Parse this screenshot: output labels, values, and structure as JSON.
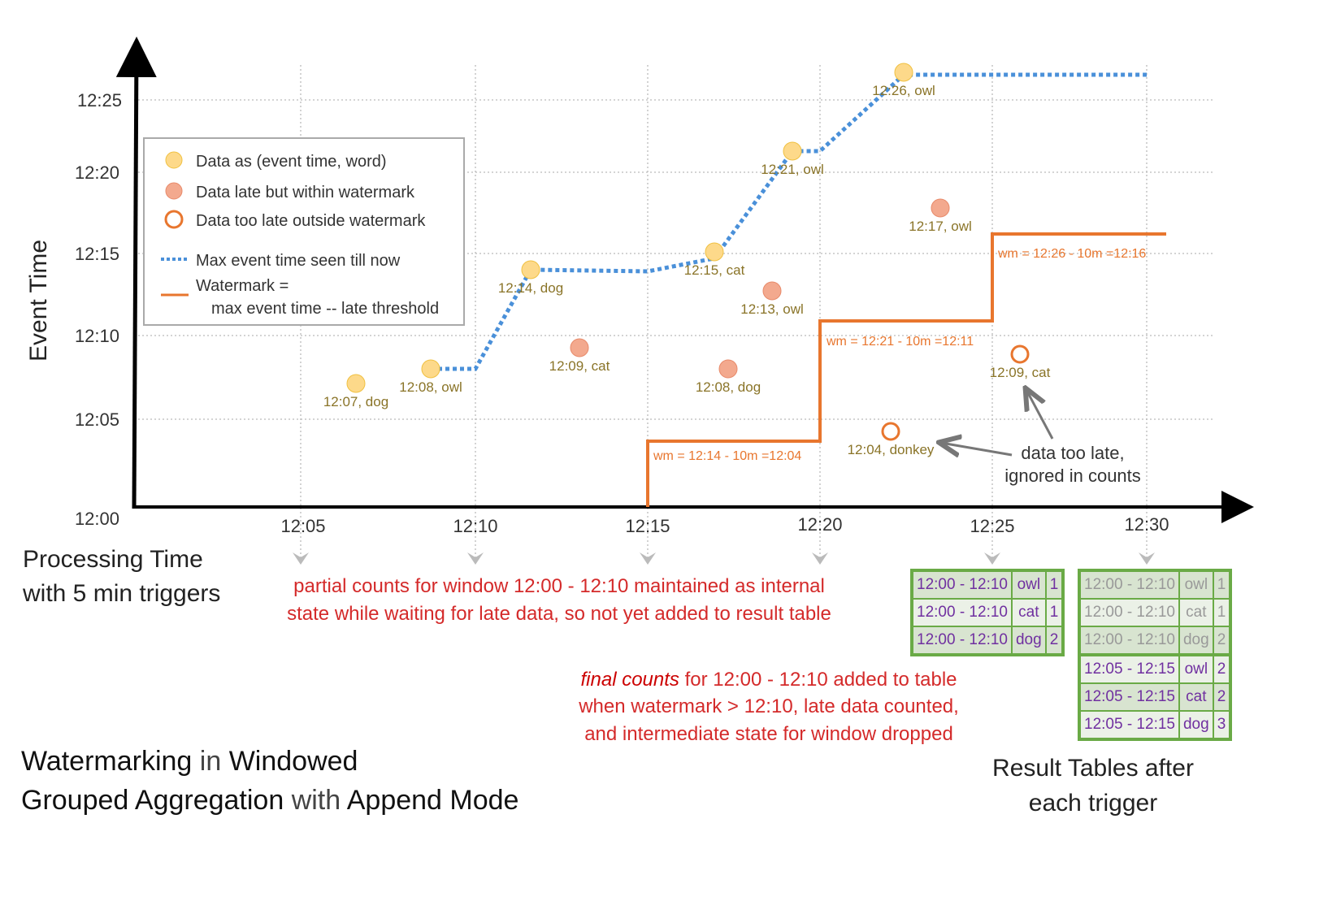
{
  "axes": {
    "y_label": "Event Time",
    "x_label_line1": "Processing Time",
    "x_label_line2": "with 5 min triggers",
    "y_ticks": [
      "12:25",
      "12:20",
      "12:15",
      "12:10",
      "12:05",
      "12:00"
    ],
    "x_ticks": [
      "12:05",
      "12:10",
      "12:15",
      "12:20",
      "12:25",
      "12:30"
    ]
  },
  "legend": {
    "items": [
      "Data as (event time, word)",
      "Data late but within watermark",
      "Data too late outside watermark",
      "Max event time seen till now",
      "Watermark =",
      "max event time -- late threshold"
    ]
  },
  "colors": {
    "on_time": "#fdd98a",
    "late": "#f3a98e",
    "too_late": "#e8762e",
    "max_line": "#4a90d9",
    "watermark": "#e8762e",
    "table_border": "#6aaa46"
  },
  "points": [
    {
      "label": "12:07, dog",
      "type": "on_time"
    },
    {
      "label": "12:08, owl",
      "type": "on_time"
    },
    {
      "label": "12:14, dog",
      "type": "on_time"
    },
    {
      "label": "12:15, cat",
      "type": "on_time"
    },
    {
      "label": "12:21, owl",
      "type": "on_time"
    },
    {
      "label": "12:26, owl",
      "type": "on_time"
    },
    {
      "label": "12:09, cat",
      "type": "late"
    },
    {
      "label": "12:08, dog",
      "type": "late"
    },
    {
      "label": "12:13, owl",
      "type": "late"
    },
    {
      "label": "12:17, owl",
      "type": "late"
    },
    {
      "label": "12:04, donkey",
      "type": "too_late"
    },
    {
      "label": "12:09, cat",
      "type": "too_late"
    }
  ],
  "watermark_labels": [
    "wm = 12:14 - 10m =12:04",
    "wm = 12:21 - 10m =12:11",
    "wm = 12:26 - 10m =12:16"
  ],
  "annotations": {
    "too_late_1": "data too late,",
    "too_late_2": "ignored in counts",
    "partial_1": "partial counts for window 12:00 - 12:10 maintained as internal",
    "partial_2": "state while waiting for late data, so not yet added  to result table",
    "final_em": "final counts",
    "final_1": " for 12:00 - 12:10 added to table",
    "final_2": "when watermark > 12:10, late data counted,",
    "final_3": "and intermediate state for window dropped"
  },
  "title": {
    "w1": "Watermarking",
    "w2": " in ",
    "w3": "Windowed",
    "w4": "Grouped Aggregation",
    "w5": " with ",
    "w6": "Append Mode"
  },
  "result_caption": {
    "line1": "Result Tables after",
    "line2": "each trigger"
  },
  "table1": [
    [
      "12:00 - 12:10",
      "owl",
      "1"
    ],
    [
      "12:00 - 12:10",
      "cat",
      "1"
    ],
    [
      "12:00 - 12:10",
      "dog",
      "2"
    ]
  ],
  "table2": [
    [
      "12:00 - 12:10",
      "owl",
      "1"
    ],
    [
      "12:00 - 12:10",
      "cat",
      "1"
    ],
    [
      "12:00 - 12:10",
      "dog",
      "2"
    ],
    [
      "12:05 - 12:15",
      "owl",
      "2"
    ],
    [
      "12:05 - 12:15",
      "cat",
      "2"
    ],
    [
      "12:05 - 12:15",
      "dog",
      "3"
    ]
  ]
}
